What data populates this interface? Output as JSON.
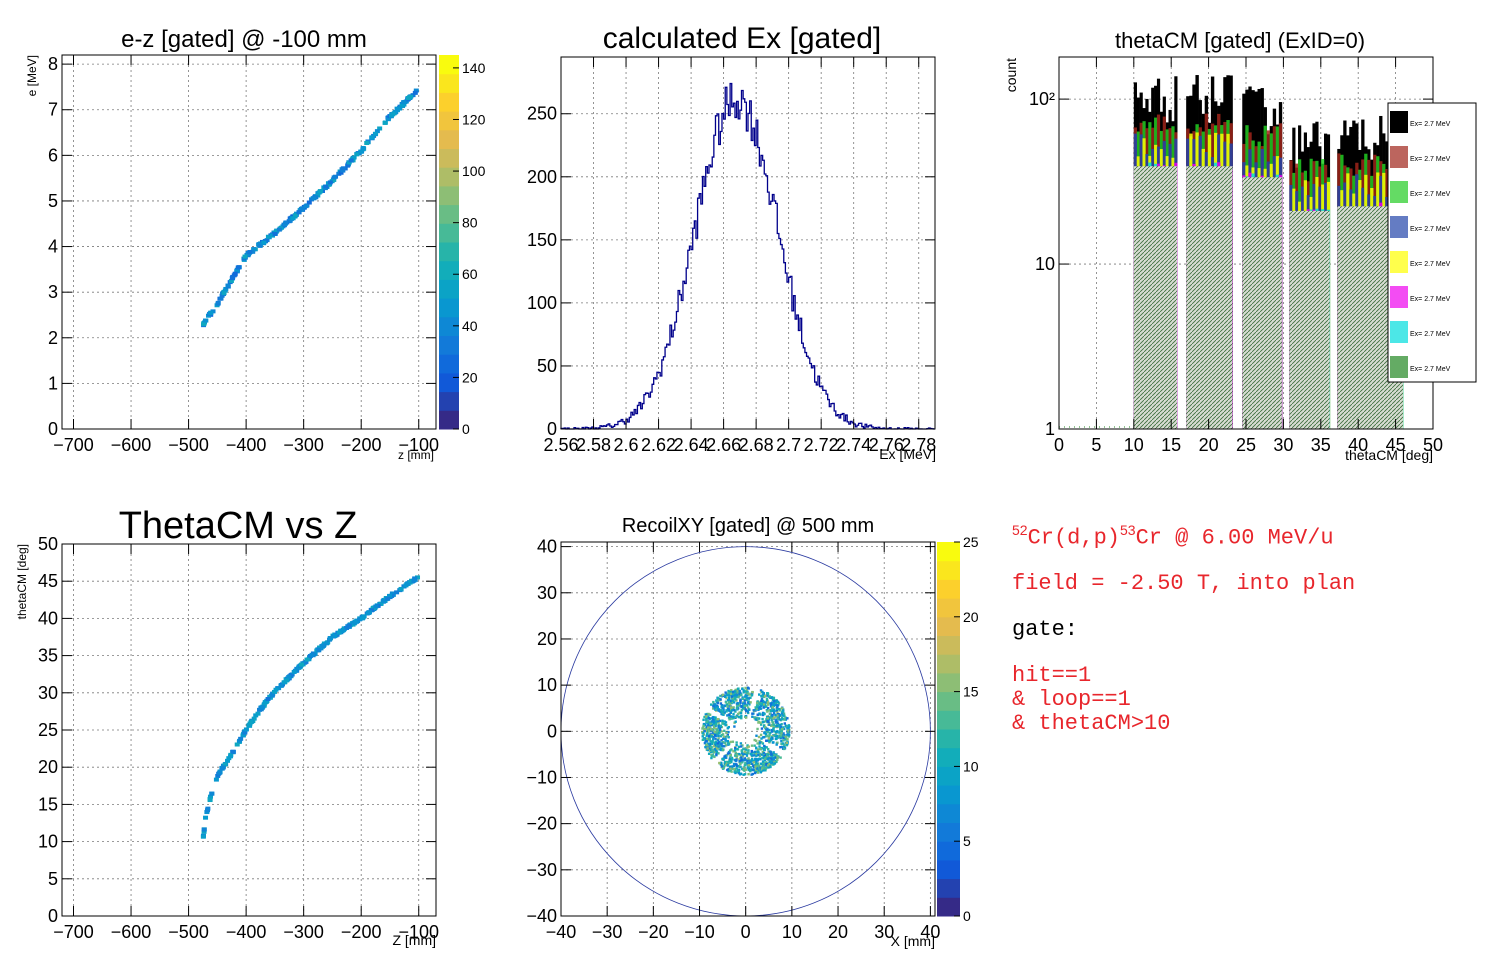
{
  "colors": {
    "hist_line": "#00008b",
    "info_red": "#e8262c",
    "frame": "#000000",
    "grid": "#7a7a7a"
  },
  "chart_data": [
    {
      "id": "ez",
      "type": "heatmap",
      "title": "e-z [gated] @  -100 mm",
      "xlabel": "z [mm]",
      "ylabel": "e [MeV]",
      "xlim": [
        -720,
        -70
      ],
      "ylim": [
        0,
        8.2
      ],
      "xticks": [
        -700,
        -600,
        -500,
        -400,
        -300,
        -200,
        -100
      ],
      "yticks": [
        0,
        1,
        2,
        3,
        4,
        5,
        6,
        7,
        8
      ],
      "colorbar": {
        "min": 0,
        "max": 145,
        "ticks": [
          0,
          20,
          40,
          60,
          80,
          100,
          120,
          140
        ],
        "labels": [
          "0",
          "20",
          "40",
          "60",
          "80",
          "100",
          "120",
          "140"
        ]
      },
      "grid": true,
      "curve": [
        [
          -475,
          2.28
        ],
        [
          -450,
          2.75
        ],
        [
          -400,
          3.8
        ],
        [
          -350,
          4.3
        ],
        [
          -300,
          4.85
        ],
        [
          -250,
          5.45
        ],
        [
          -200,
          6.1
        ],
        [
          -150,
          6.85
        ],
        [
          -100,
          7.45
        ]
      ]
    },
    {
      "id": "ex",
      "type": "line",
      "title": "calculated Ex [gated]",
      "xlabel": "Ex [MeV]",
      "ylabel": "",
      "xlim": [
        2.56,
        2.79
      ],
      "ylim": [
        0,
        295
      ],
      "xticks": [
        2.56,
        2.58,
        2.6,
        2.62,
        2.64,
        2.66,
        2.68,
        2.7,
        2.72,
        2.74,
        2.76,
        2.78
      ],
      "xticklabels": [
        "2.56",
        "2.58",
        "2.6",
        "2.62",
        "2.64",
        "2.66",
        "2.68",
        "2.7",
        "2.72",
        "2.74",
        "2.76",
        "2.78"
      ],
      "yticks": [
        0,
        50,
        100,
        150,
        200,
        250
      ],
      "grid": true,
      "peak": {
        "mean": 2.668,
        "sigma": 0.0255,
        "amplitude": 262
      }
    },
    {
      "id": "theta",
      "type": "bar",
      "title": "thetaCM [gated] (ExID=0)",
      "xlabel": "thetaCM [deg]",
      "ylabel": "count",
      "log_y": true,
      "xlim": [
        0,
        50
      ],
      "ylim": [
        1,
        180
      ],
      "xticks": [
        0,
        5,
        10,
        15,
        20,
        25,
        30,
        35,
        40,
        45,
        50
      ],
      "yticks": [
        1,
        10,
        100
      ],
      "yticklabels": [
        "1",
        "10",
        "10²"
      ],
      "grid": true,
      "bands": [
        [
          10,
          15.8
        ],
        [
          17,
          23.2
        ],
        [
          24.5,
          29.8
        ],
        [
          30.8,
          36.2
        ],
        [
          37.2,
          46
        ]
      ],
      "top_values": [
        140,
        140,
        120,
        75,
        80
      ],
      "legend": {
        "placement": "right",
        "entries": [
          "Ex=  2.7 MeV",
          "Ex=  2.7 MeV",
          "Ex=  2.7 MeV",
          "Ex=  2.7 MeV",
          "Ex=  2.7 MeV",
          "Ex=  2.7 MeV",
          "Ex=  2.7 MeV",
          "Ex=  2.7 MeV"
        ],
        "colors": [
          "#000000",
          "#a0241a",
          "#22cc22",
          "#2244aa",
          "#ffff00",
          "#ee00ee",
          "#00dddd",
          "#228822"
        ]
      }
    },
    {
      "id": "thz",
      "type": "scatter",
      "title": "ThetaCM vs Z",
      "xlabel": "Z [mm]",
      "ylabel": "thetaCM [deg]",
      "xlim": [
        -720,
        -70
      ],
      "ylim": [
        0,
        50
      ],
      "xticks": [
        -700,
        -600,
        -500,
        -400,
        -300,
        -200,
        -100
      ],
      "yticks": [
        0,
        5,
        10,
        15,
        20,
        25,
        30,
        35,
        40,
        45,
        50
      ],
      "grid": true,
      "curve": [
        [
          -475,
          10.2
        ],
        [
          -470,
          13.5
        ],
        [
          -460,
          16.5
        ],
        [
          -450,
          18.8
        ],
        [
          -425,
          21.8
        ],
        [
          -400,
          25
        ],
        [
          -375,
          27.8
        ],
        [
          -350,
          30.2
        ],
        [
          -300,
          34
        ],
        [
          -250,
          37.5
        ],
        [
          -200,
          40
        ],
        [
          -150,
          43
        ],
        [
          -100,
          45.6
        ]
      ]
    },
    {
      "id": "xy",
      "type": "heatmap",
      "title": "RecoilXY [gated] @  500 mm",
      "xlabel": "X [mm]",
      "ylabel": "",
      "xlim": [
        -40,
        41
      ],
      "ylim": [
        -40,
        41
      ],
      "xticks": [
        -40,
        -30,
        -20,
        -10,
        0,
        10,
        20,
        30,
        40
      ],
      "yticks": [
        -40,
        -30,
        -20,
        -10,
        0,
        10,
        20,
        30,
        40
      ],
      "colorbar": {
        "min": 0,
        "max": 25,
        "ticks": [
          0,
          5,
          10,
          15,
          20,
          25
        ],
        "labels": [
          "0",
          "5",
          "10",
          "15",
          "20",
          "25"
        ]
      },
      "grid": true,
      "circle_radius": 40,
      "ring": {
        "inner": 2.5,
        "outer": 9.5
      }
    }
  ],
  "info": {
    "reaction_pre": "52",
    "reaction_mid": "Cr(d,p)",
    "reaction_post": "53",
    "reaction_end": "Cr @ 6.00 MeV/u",
    "field": "field = -2.50 T, into plan",
    "gate_label": "gate:",
    "gate_lines": [
      "hit==1",
      "& loop==1",
      "& thetaCM>10"
    ]
  }
}
